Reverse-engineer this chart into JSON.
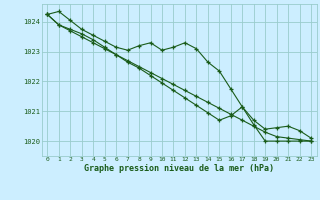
{
  "title": "Graphe pression niveau de la mer (hPa)",
  "bg_color": "#cceeff",
  "plot_bg_color": "#cceeff",
  "grid_color": "#99cccc",
  "line_color": "#1a5c1a",
  "xlabel_color": "#1a5c1a",
  "ylabel_color": "#1a5c1a",
  "tick_color": "#1a5c1a",
  "xlim": [
    -0.5,
    23.5
  ],
  "ylim": [
    1019.5,
    1024.6
  ],
  "yticks": [
    1020,
    1021,
    1022,
    1023,
    1024
  ],
  "xticks": [
    0,
    1,
    2,
    3,
    4,
    5,
    6,
    7,
    8,
    9,
    10,
    11,
    12,
    13,
    14,
    15,
    16,
    17,
    18,
    19,
    20,
    21,
    22,
    23
  ],
  "series": [
    [
      1024.25,
      1024.35,
      1024.05,
      1023.75,
      1023.55,
      1023.35,
      1023.15,
      1023.05,
      1023.2,
      1023.3,
      1023.05,
      1023.15,
      1023.3,
      1023.1,
      1022.65,
      1022.35,
      1021.75,
      1021.15,
      1020.55,
      1020.0,
      1020.0,
      1020.0,
      1020.0,
      1020.0
    ],
    [
      1024.25,
      1023.9,
      1023.75,
      1023.6,
      1023.4,
      1023.15,
      1022.9,
      1022.65,
      1022.45,
      1022.2,
      1021.95,
      1021.7,
      1021.45,
      1021.2,
      1020.95,
      1020.7,
      1020.85,
      1021.15,
      1020.7,
      1020.4,
      1020.45,
      1020.5,
      1020.35,
      1020.1
    ],
    [
      1024.25,
      1023.9,
      1023.7,
      1023.5,
      1023.3,
      1023.1,
      1022.9,
      1022.7,
      1022.5,
      1022.3,
      1022.1,
      1021.9,
      1021.7,
      1021.5,
      1021.3,
      1021.1,
      1020.9,
      1020.7,
      1020.5,
      1020.3,
      1020.15,
      1020.1,
      1020.05,
      1020.0
    ]
  ]
}
